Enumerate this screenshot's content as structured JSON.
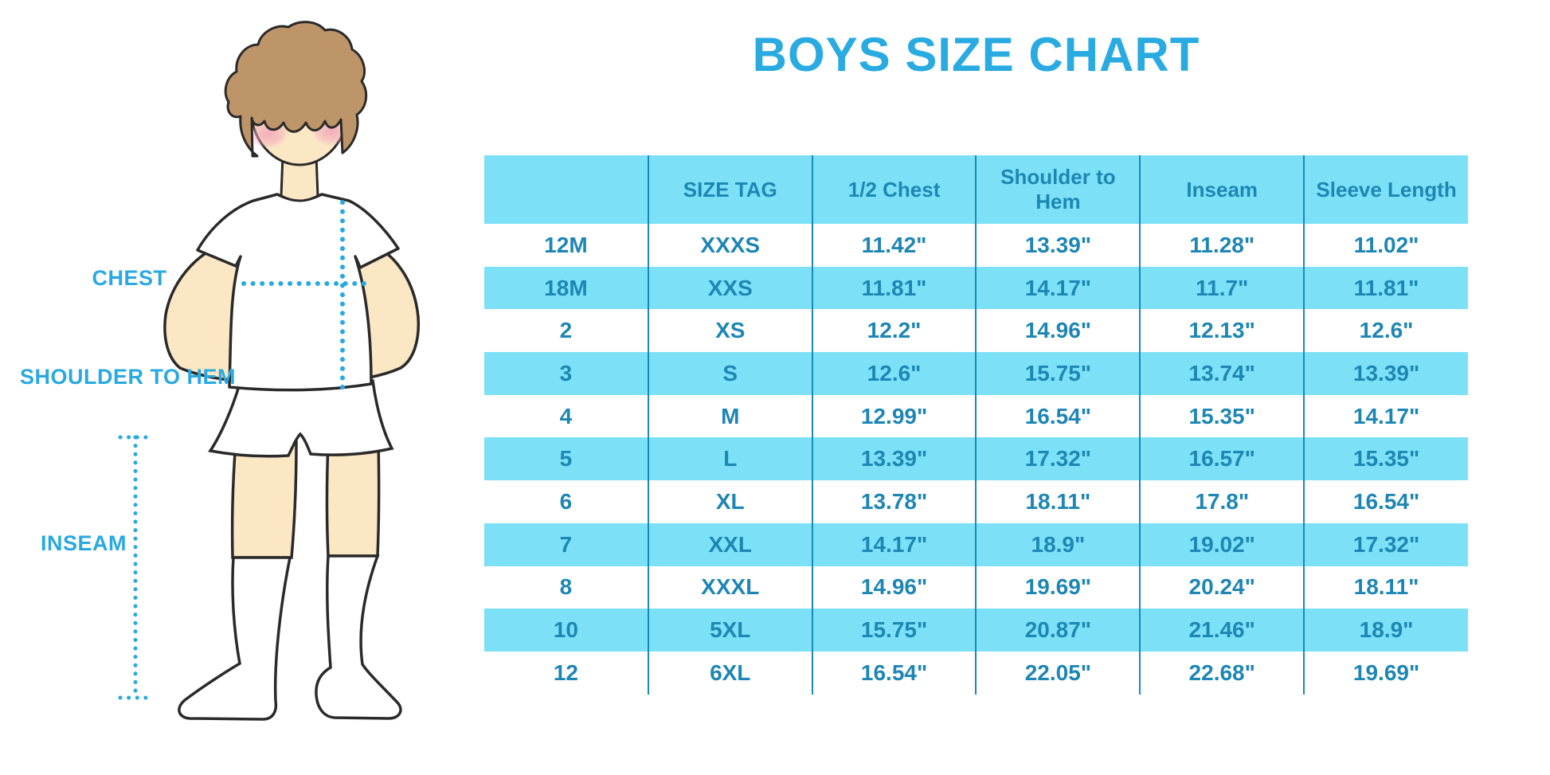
{
  "title": "BOYS SIZE CHART",
  "figure": {
    "labels": {
      "chest": "CHEST",
      "shoulder_to_hem": "SHOULDER TO HEM",
      "inseam": "INSEAM"
    }
  },
  "colors": {
    "accent_blue": "#29ABE2",
    "table_fill_cyan": "#7CE0F7",
    "table_text_blue": "#1E86B4",
    "divider_blue": "#1889BB",
    "skin": "#FBE7C4",
    "hair": "#BD9569",
    "outline": "#2A2A2A",
    "blush": "#F2A6BA"
  },
  "chart_data": {
    "type": "table",
    "title": "BOYS SIZE CHART",
    "columns": [
      "",
      "SIZE TAG",
      "1/2 Chest",
      "Shoulder to Hem",
      "Inseam",
      "Sleeve Length"
    ],
    "rows": [
      [
        "12M",
        "XXXS",
        "11.42\"",
        "13.39\"",
        "11.28\"",
        "11.02\""
      ],
      [
        "18M",
        "XXS",
        "11.81\"",
        "14.17\"",
        "11.7\"",
        "11.81\""
      ],
      [
        "2",
        "XS",
        "12.2\"",
        "14.96\"",
        "12.13\"",
        "12.6\""
      ],
      [
        "3",
        "S",
        "12.6\"",
        "15.75\"",
        "13.74\"",
        "13.39\""
      ],
      [
        "4",
        "M",
        "12.99\"",
        "16.54\"",
        "15.35\"",
        "14.17\""
      ],
      [
        "5",
        "L",
        "13.39\"",
        "17.32\"",
        "16.57\"",
        "15.35\""
      ],
      [
        "6",
        "XL",
        "13.78\"",
        "18.11\"",
        "17.8\"",
        "16.54\""
      ],
      [
        "7",
        "XXL",
        "14.17\"",
        "18.9\"",
        "19.02\"",
        "17.32\""
      ],
      [
        "8",
        "XXXL",
        "14.96\"",
        "19.69\"",
        "20.24\"",
        "18.11\""
      ],
      [
        "10",
        "5XL",
        "15.75\"",
        "20.87\"",
        "21.46\"",
        "18.9\""
      ],
      [
        "12",
        "6XL",
        "16.54\"",
        "22.05\"",
        "22.68\"",
        "19.69\""
      ]
    ],
    "row_striping": [
      "white",
      "cyan",
      "white",
      "cyan",
      "white",
      "cyan",
      "white",
      "cyan",
      "white",
      "cyan",
      "white"
    ]
  }
}
